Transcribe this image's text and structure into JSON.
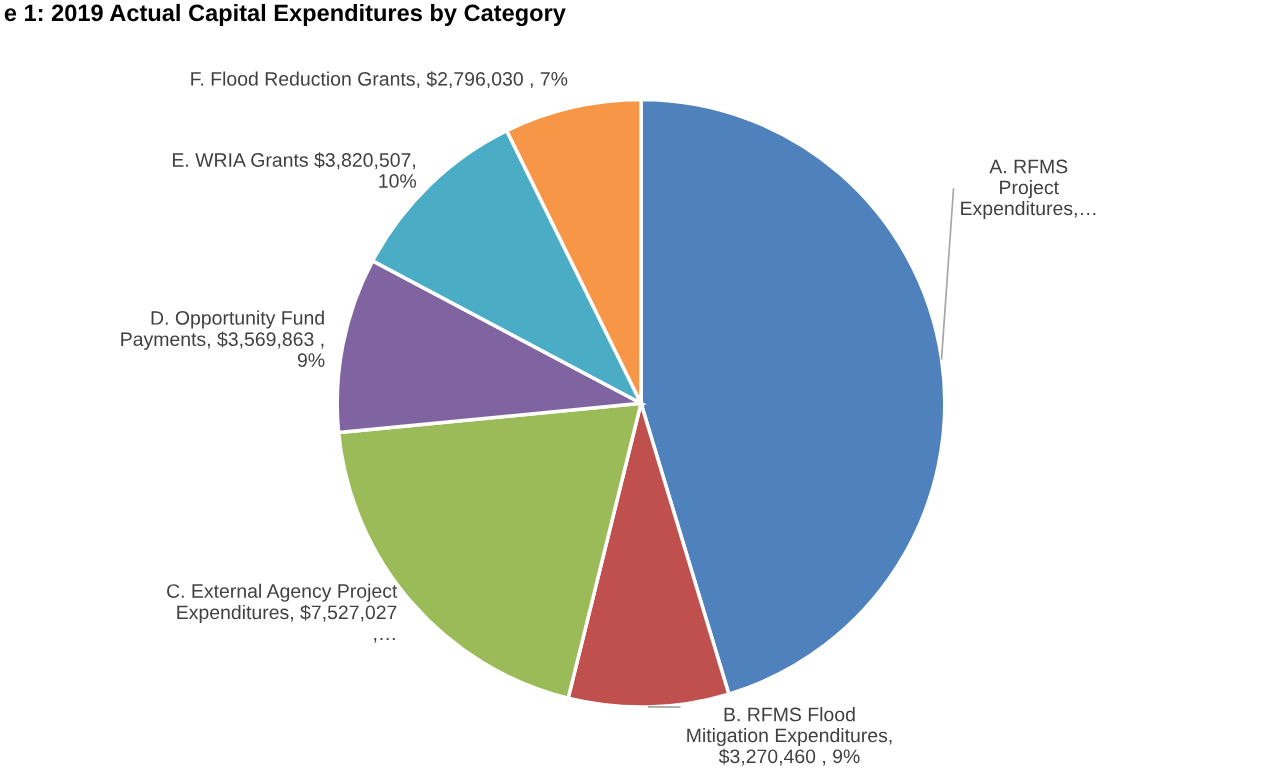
{
  "chart_data": {
    "type": "pie",
    "title": "e 1: 2019 Actual Capital Expenditures by Category",
    "categories": [
      "A. RFMS\nProject\nExpenditures,…",
      "B. RFMS Flood\nMitigation Expenditures,\n$3,270,460 , 9%",
      "C. External Agency Project\nExpenditures, $7,527,027\n,…",
      "D. Opportunity Fund\nPayments, $3,569,863 ,\n9%",
      "E. WRIA Grants $3,820,507,\n10%",
      "F. Flood Reduction Grants, $2,796,030 , 7%"
    ],
    "values": [
      17400000,
      3270460,
      7527027,
      3569863,
      3820507,
      2796030
    ],
    "colors": [
      "#4f81bd",
      "#c0504d",
      "#9bbb59",
      "#8064a2",
      "#4bacc6",
      "#f79646"
    ]
  }
}
